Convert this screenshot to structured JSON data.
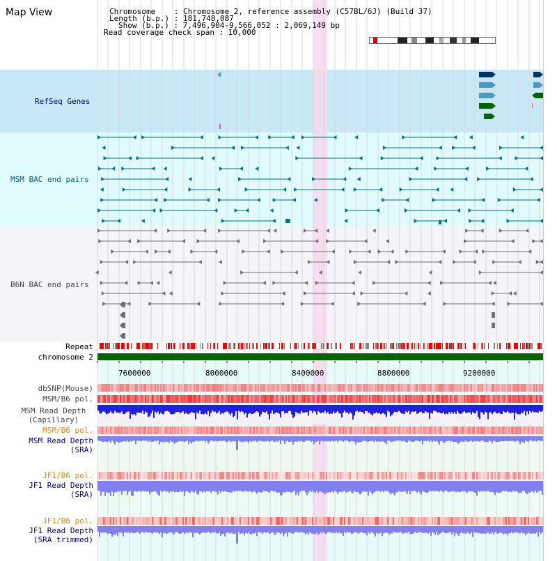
{
  "title": "Map View",
  "header": {
    "chromosome_line": "Chromosome    : Chromosome 2, reference assembly (C57BL/6J) (Build 37)",
    "length_line": "Length (b.p.) : 181,748,087",
    "show_line": "Show (b.p.) : 7,496,904-9,566,052 : 2,069,149 bp",
    "coverage_line": "Read coverage check span : 10,000"
  },
  "tracks": {
    "refseq": "RefSeq Genes",
    "msm_bac": "MSM BAC end pairs",
    "b6n_bac": "B6N BAC end pairs",
    "repeat": "Repeat",
    "chromosome": "chromosome 2",
    "dbsnp": "dbSNP(Mouse)",
    "msm_b6_pol": "MSM/B6 pol.",
    "msm_depth_cap": "MSM Read Depth\n(Capillary)",
    "msm_b6_pol2": "MSM/B6 pol.",
    "msm_depth_sra": "MSM Read Depth\n(SRA)",
    "jf1_b6_pol": "JF1/B6 pol.",
    "jf1_depth_sra": "JF1 Read Depth\n(SRA)",
    "jf1_b6_pol2": "JF1/B6 pol.",
    "jf1_depth_trim": "JF1 Read Depth\n(SRA trimmed)"
  },
  "axis": {
    "ticks": [
      "7600000",
      "8000000",
      "8400000",
      "8800000",
      "9200000"
    ]
  },
  "colors": {
    "refseq_bg": "#c8e8f8",
    "msm_bg": "#e0fbfb",
    "b6n_bg": "#f4f4fa",
    "highlight": "#f8d8f0",
    "chromosome": "#006400",
    "refseq_dark": "#003366",
    "refseq_light": "#4a9ac0",
    "refseq_green": "#006400",
    "msm_feature": "#00708a",
    "b6n_feature": "#707070",
    "depth_blue": "#2020e0",
    "depth_light": "#8080f0"
  }
}
